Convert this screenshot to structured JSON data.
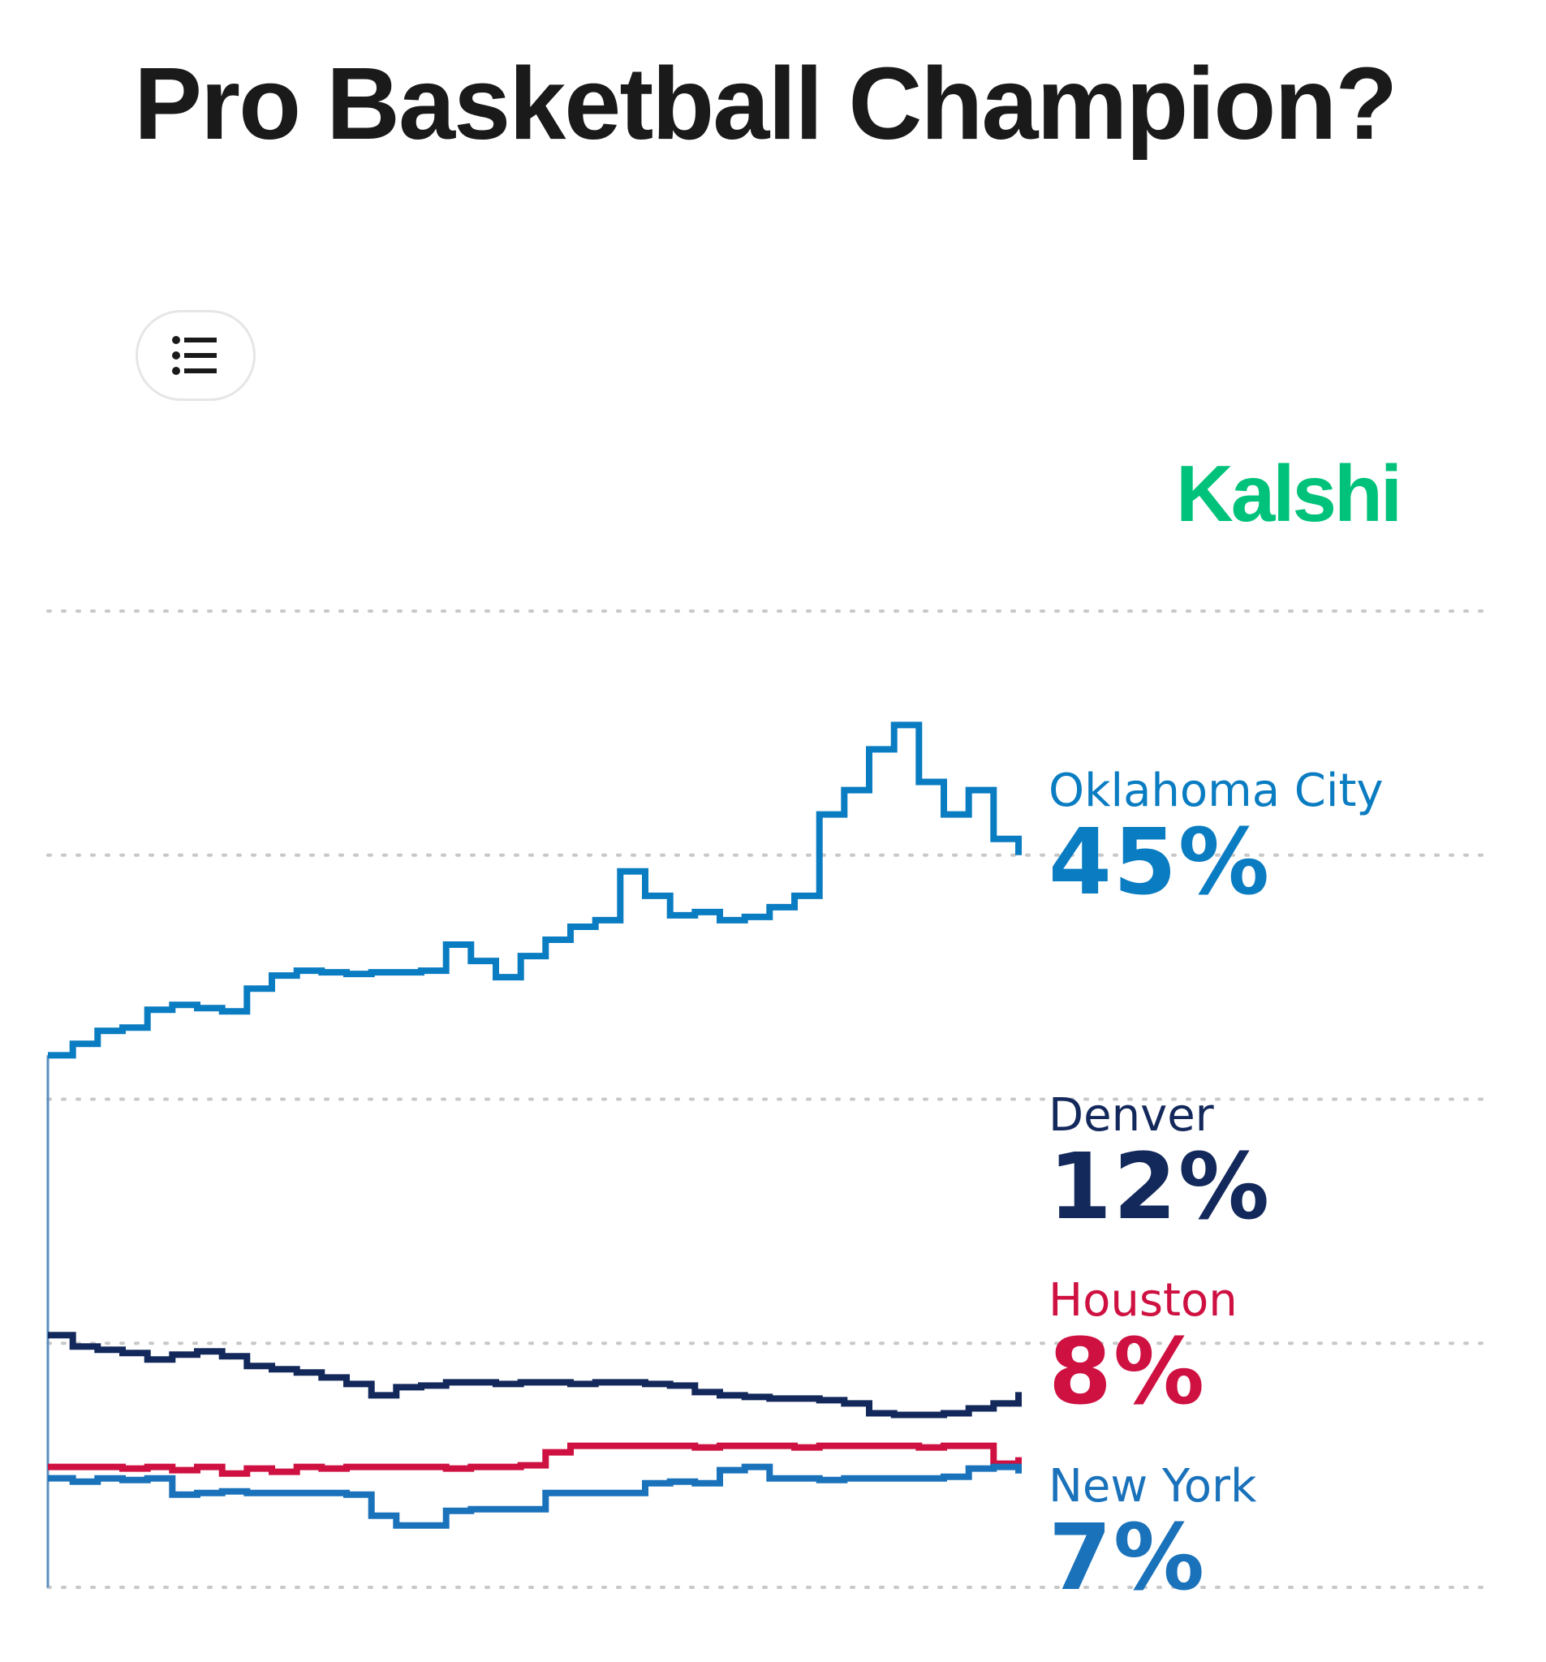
{
  "brand": {
    "logo_text": "Kalshi",
    "color": "#00c27a"
  },
  "menu_button": {
    "icon": "list-icon"
  },
  "chart_data": {
    "type": "line",
    "title": "Pro Basketball Champion?",
    "xlabel": "",
    "ylabel": "",
    "ylim": [
      0,
      60
    ],
    "gridlines_y": [
      0,
      15,
      30,
      45,
      60
    ],
    "grid": "horizontal dotted",
    "legend": "right, end-of-line labels",
    "step": true,
    "series": [
      {
        "name": "Oklahoma City",
        "label": "45%",
        "color": "#0a7cc1",
        "values": [
          32.7,
          33.4,
          34.2,
          34.4,
          35.5,
          35.8,
          35.6,
          35.4,
          36.8,
          37.6,
          37.9,
          37.8,
          37.7,
          37.8,
          37.8,
          37.9,
          39.5,
          38.5,
          37.5,
          38.8,
          39.8,
          40.6,
          41.0,
          44.0,
          42.5,
          41.3,
          41.5,
          41.0,
          41.2,
          41.8,
          42.5,
          47.5,
          49.0,
          51.5,
          53.0,
          49.5,
          47.5,
          49.0,
          46.0,
          45.0
        ]
      },
      {
        "name": "Denver",
        "label": "12%",
        "color": "#13295b",
        "values": [
          15.5,
          14.8,
          14.6,
          14.4,
          14.0,
          14.3,
          14.5,
          14.2,
          13.6,
          13.4,
          13.2,
          12.9,
          12.5,
          11.8,
          12.3,
          12.4,
          12.6,
          12.6,
          12.5,
          12.6,
          12.6,
          12.5,
          12.6,
          12.6,
          12.5,
          12.4,
          12.0,
          11.8,
          11.7,
          11.6,
          11.6,
          11.5,
          11.3,
          10.7,
          10.6,
          10.6,
          10.7,
          11.0,
          11.3,
          12.0
        ]
      },
      {
        "name": "Houston",
        "label": "8%",
        "color": "#ce1141",
        "values": [
          7.4,
          7.4,
          7.4,
          7.3,
          7.4,
          7.2,
          7.4,
          7.0,
          7.3,
          7.1,
          7.4,
          7.3,
          7.4,
          7.4,
          7.4,
          7.4,
          7.3,
          7.4,
          7.4,
          7.5,
          8.3,
          8.7,
          8.7,
          8.7,
          8.7,
          8.7,
          8.6,
          8.7,
          8.7,
          8.7,
          8.6,
          8.7,
          8.7,
          8.7,
          8.7,
          8.6,
          8.7,
          8.7,
          7.6,
          8.0
        ]
      },
      {
        "name": "New York",
        "label": "7%",
        "color": "#1a72bb",
        "values": [
          6.7,
          6.5,
          6.7,
          6.6,
          6.7,
          5.7,
          5.8,
          5.9,
          5.8,
          5.8,
          5.8,
          5.8,
          5.7,
          4.4,
          3.8,
          3.8,
          4.7,
          4.8,
          4.8,
          4.8,
          5.8,
          5.8,
          5.8,
          5.8,
          6.4,
          6.5,
          6.4,
          7.2,
          7.4,
          6.7,
          6.7,
          6.6,
          6.7,
          6.7,
          6.7,
          6.7,
          6.8,
          7.3,
          7.4,
          7.0
        ]
      }
    ]
  }
}
